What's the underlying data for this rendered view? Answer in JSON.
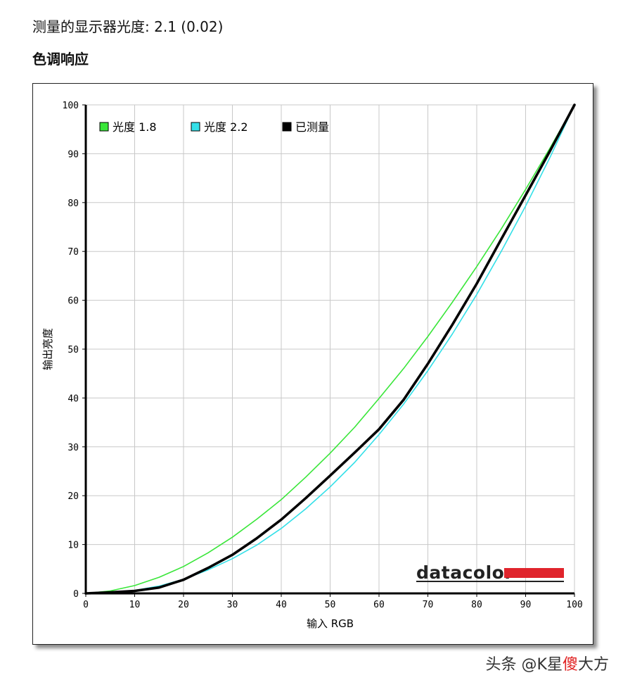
{
  "heading": {
    "measured_gamma_label": "测量的显示器光度:",
    "measured_gamma_value": "2.1 (0.02)",
    "section_title": "色调响应"
  },
  "watermark": {
    "prefix": "头条 @K星",
    "accent": "傻",
    "suffix": "大方"
  },
  "chart_data": {
    "type": "line",
    "xlabel": "输入 RGB",
    "ylabel": "输出亮度",
    "xlim": [
      0,
      100
    ],
    "ylim": [
      0,
      100
    ],
    "x_ticks": [
      "0",
      "10",
      "20",
      "30",
      "40",
      "50",
      "60",
      "70",
      "80",
      "90",
      "100"
    ],
    "y_ticks": [
      "0",
      "10",
      "20",
      "30",
      "40",
      "50",
      "60",
      "70",
      "80",
      "90",
      "100"
    ],
    "grid": true,
    "legend_position": "top-left",
    "logo_text": "datacolor",
    "x": [
      0,
      5,
      10,
      15,
      20,
      25,
      30,
      35,
      40,
      45,
      50,
      55,
      60,
      65,
      70,
      75,
      80,
      85,
      90,
      95,
      100
    ],
    "series": [
      {
        "name": "光度 1.8",
        "color": "#39e639",
        "values": [
          0,
          0.5,
          1.6,
          3.3,
          5.5,
          8.3,
          11.5,
          15.2,
          19.2,
          23.8,
          28.7,
          34.0,
          39.9,
          46.0,
          52.6,
          59.6,
          66.9,
          74.6,
          82.7,
          91.2,
          100
        ]
      },
      {
        "name": "光度 2.2",
        "color": "#33e0e8",
        "values": [
          0,
          0.1,
          0.6,
          1.5,
          2.9,
          4.8,
          7.1,
          9.9,
          13.3,
          17.3,
          21.8,
          26.8,
          32.5,
          38.7,
          45.6,
          53.1,
          61.2,
          70.0,
          79.3,
          89.3,
          100
        ]
      },
      {
        "name": "已测量",
        "color": "#000000",
        "values": [
          0,
          0.2,
          0.5,
          1.2,
          2.8,
          5.2,
          7.9,
          11.3,
          15.1,
          19.5,
          24.1,
          28.8,
          33.6,
          39.6,
          47.0,
          55.0,
          63.4,
          72.5,
          81.5,
          90.6,
          100
        ]
      }
    ]
  }
}
